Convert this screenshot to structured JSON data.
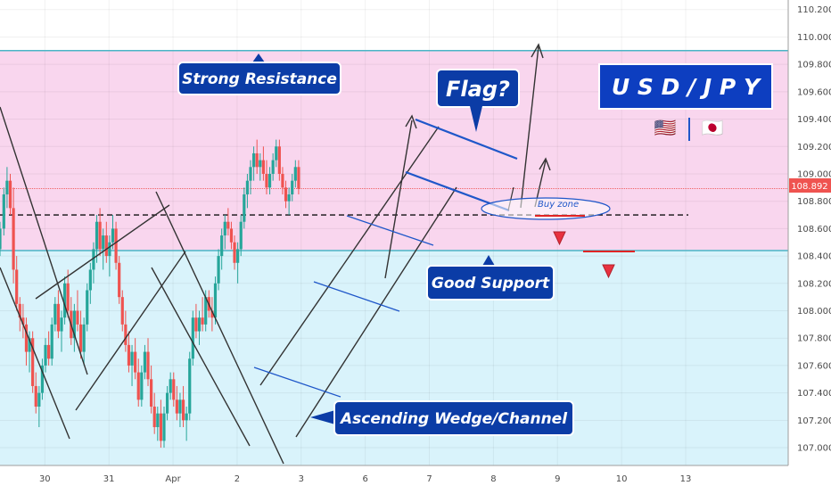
{
  "chart_data": {
    "type": "candlestick",
    "title": "U S D / J P Y",
    "symbol_flags": [
      "🇺🇸",
      "🇯🇵"
    ],
    "y_range": [
      106.87,
      110.27
    ],
    "y_ticks": [
      "110.200",
      "110.000",
      "109.800",
      "109.600",
      "109.400",
      "109.200",
      "109.000",
      "108.800",
      "108.600",
      "108.400",
      "108.200",
      "108.000",
      "107.800",
      "107.600",
      "107.400",
      "107.200",
      "107.000"
    ],
    "x_labels": [
      "30",
      "31",
      "Apr",
      "2",
      "3",
      "6",
      "7",
      "8",
      "9",
      "10",
      "13"
    ],
    "x_range": [
      -0.7,
      11.6
    ],
    "last_price": "108.892",
    "zones": {
      "resistance": {
        "from": 108.44,
        "to": 109.9,
        "color": "#f9d6ee"
      },
      "support_below": {
        "from": 106.87,
        "to": 108.44,
        "color": "#d9f3fb"
      },
      "resistance_line": 109.9,
      "support_line": 108.44
    },
    "buy_zone_level": 108.7,
    "target_levels": [
      108.66,
      108.41
    ],
    "annotations": {
      "strong_resistance": "Strong Resistance",
      "flag": "Flag?",
      "good_support": "Good Support",
      "ascending_wedge": "Ascending Wedge/Channel",
      "buy_zone": "Buy zone"
    },
    "colors": {
      "up": "#26a69a",
      "down": "#ef5350",
      "callout": "#0b3ca6",
      "callout_border": "#ffffff",
      "title_box": "#0d3ec0"
    },
    "candles": [
      [
        -0.7,
        108.45,
        108.65,
        108.4,
        108.6
      ],
      [
        -0.64,
        108.6,
        108.9,
        108.55,
        108.85
      ],
      [
        -0.59,
        108.85,
        109.05,
        108.75,
        108.95
      ],
      [
        -0.54,
        108.95,
        109.0,
        108.7,
        108.75
      ],
      [
        -0.49,
        108.75,
        108.9,
        108.2,
        108.3
      ],
      [
        -0.44,
        108.3,
        108.4,
        108.0,
        108.05
      ],
      [
        -0.39,
        108.05,
        108.1,
        107.85,
        107.95
      ],
      [
        -0.34,
        107.95,
        108.05,
        107.8,
        107.9
      ],
      [
        -0.29,
        107.9,
        107.95,
        107.6,
        107.7
      ],
      [
        -0.24,
        107.7,
        107.85,
        107.55,
        107.8
      ],
      [
        -0.19,
        107.8,
        107.85,
        107.4,
        107.45
      ],
      [
        -0.14,
        107.45,
        107.55,
        107.25,
        107.3
      ],
      [
        -0.09,
        107.3,
        107.45,
        107.15,
        107.4
      ],
      [
        -0.04,
        107.4,
        107.65,
        107.35,
        107.6
      ],
      [
        0.01,
        107.6,
        107.8,
        107.55,
        107.75
      ],
      [
        0.06,
        107.75,
        107.85,
        107.6,
        107.65
      ],
      [
        0.11,
        107.65,
        107.95,
        107.6,
        107.9
      ],
      [
        0.16,
        107.9,
        108.1,
        107.85,
        108.05
      ],
      [
        0.21,
        108.05,
        108.15,
        107.8,
        107.85
      ],
      [
        0.26,
        107.85,
        108.0,
        107.7,
        107.95
      ],
      [
        0.31,
        107.95,
        108.25,
        107.9,
        108.2
      ],
      [
        0.36,
        108.2,
        108.3,
        107.95,
        108.0
      ],
      [
        0.41,
        108.0,
        108.1,
        107.75,
        107.8
      ],
      [
        0.46,
        107.8,
        108.05,
        107.7,
        108.0
      ],
      [
        0.51,
        108.0,
        108.15,
        107.85,
        107.9
      ],
      [
        0.56,
        107.9,
        108.0,
        107.65,
        107.7
      ],
      [
        0.61,
        107.7,
        107.95,
        107.6,
        107.9
      ],
      [
        0.66,
        107.9,
        108.2,
        107.85,
        108.15
      ],
      [
        0.71,
        108.15,
        108.35,
        108.05,
        108.3
      ],
      [
        0.76,
        108.3,
        108.5,
        108.2,
        108.45
      ],
      [
        0.81,
        108.45,
        108.7,
        108.35,
        108.65
      ],
      [
        0.86,
        108.65,
        108.75,
        108.4,
        108.45
      ],
      [
        0.91,
        108.45,
        108.6,
        108.3,
        108.55
      ],
      [
        0.96,
        108.55,
        108.65,
        108.35,
        108.4
      ],
      [
        1.01,
        108.4,
        108.55,
        108.25,
        108.5
      ],
      [
        1.06,
        108.5,
        108.7,
        108.45,
        108.6
      ],
      [
        1.11,
        108.6,
        108.65,
        108.3,
        108.35
      ],
      [
        1.16,
        108.35,
        108.4,
        108.05,
        108.1
      ],
      [
        1.21,
        108.1,
        108.15,
        107.85,
        107.9
      ],
      [
        1.26,
        107.9,
        108.0,
        107.7,
        107.75
      ],
      [
        1.31,
        107.75,
        107.85,
        107.55,
        107.6
      ],
      [
        1.36,
        107.6,
        107.75,
        107.45,
        107.7
      ],
      [
        1.41,
        107.7,
        107.8,
        107.5,
        107.55
      ],
      [
        1.46,
        107.55,
        107.65,
        107.3,
        107.35
      ],
      [
        1.51,
        107.35,
        107.6,
        107.3,
        107.55
      ],
      [
        1.56,
        107.55,
        107.75,
        107.5,
        107.7
      ],
      [
        1.61,
        107.7,
        107.8,
        107.45,
        107.5
      ],
      [
        1.66,
        107.5,
        107.6,
        107.25,
        107.3
      ],
      [
        1.71,
        107.3,
        107.4,
        107.1,
        107.15
      ],
      [
        1.76,
        107.15,
        107.3,
        107.05,
        107.25
      ],
      [
        1.81,
        107.25,
        107.35,
        107.0,
        107.05
      ],
      [
        1.86,
        107.05,
        107.3,
        107.0,
        107.25
      ],
      [
        1.91,
        107.25,
        107.45,
        107.2,
        107.4
      ],
      [
        1.96,
        107.4,
        107.55,
        107.35,
        107.5
      ],
      [
        2.01,
        107.5,
        107.55,
        107.3,
        107.35
      ],
      [
        2.06,
        107.35,
        107.45,
        107.2,
        107.25
      ],
      [
        2.11,
        107.25,
        107.4,
        107.15,
        107.35
      ],
      [
        2.16,
        107.35,
        107.45,
        107.15,
        107.2
      ],
      [
        2.21,
        107.2,
        107.3,
        107.05,
        107.25
      ],
      [
        2.26,
        107.25,
        107.7,
        107.2,
        107.65
      ],
      [
        2.31,
        107.65,
        108.0,
        107.6,
        107.95
      ],
      [
        2.36,
        107.95,
        108.05,
        107.8,
        107.85
      ],
      [
        2.41,
        107.85,
        108.0,
        107.75,
        107.95
      ],
      [
        2.46,
        107.95,
        108.1,
        107.85,
        107.9
      ],
      [
        2.51,
        107.9,
        108.15,
        107.85,
        108.1
      ],
      [
        2.56,
        108.1,
        108.15,
        107.95,
        108.0
      ],
      [
        2.61,
        108.0,
        108.1,
        107.85,
        107.95
      ],
      [
        2.66,
        107.95,
        108.25,
        107.9,
        108.2
      ],
      [
        2.71,
        108.2,
        108.45,
        108.15,
        108.4
      ],
      [
        2.76,
        108.4,
        108.6,
        108.3,
        108.55
      ],
      [
        2.81,
        108.55,
        108.7,
        108.45,
        108.65
      ],
      [
        2.86,
        108.65,
        108.75,
        108.55,
        108.6
      ],
      [
        2.91,
        108.6,
        108.65,
        108.45,
        108.5
      ],
      [
        2.96,
        108.5,
        108.55,
        108.3,
        108.35
      ],
      [
        3.01,
        108.35,
        108.5,
        108.2,
        108.45
      ],
      [
        3.06,
        108.45,
        108.7,
        108.4,
        108.65
      ],
      [
        3.11,
        108.65,
        108.9,
        108.6,
        108.85
      ],
      [
        3.16,
        108.85,
        109.0,
        108.75,
        108.95
      ],
      [
        3.21,
        108.95,
        109.1,
        108.85,
        109.05
      ],
      [
        3.26,
        109.05,
        109.2,
        108.95,
        109.15
      ],
      [
        3.31,
        109.15,
        109.25,
        109.0,
        109.05
      ],
      [
        3.36,
        109.05,
        109.15,
        108.95,
        109.1
      ],
      [
        3.41,
        109.1,
        109.2,
        108.95,
        109.0
      ],
      [
        3.46,
        109.0,
        109.1,
        108.85,
        108.9
      ],
      [
        3.51,
        108.9,
        109.05,
        108.85,
        109.0
      ],
      [
        3.56,
        109.0,
        109.15,
        108.95,
        109.1
      ],
      [
        3.61,
        109.1,
        109.25,
        109.05,
        109.2
      ],
      [
        3.66,
        109.2,
        109.25,
        108.95,
        109.0
      ],
      [
        3.71,
        109.0,
        109.05,
        108.85,
        108.9
      ],
      [
        3.76,
        108.9,
        108.95,
        108.75,
        108.8
      ],
      [
        3.81,
        108.8,
        108.9,
        108.7,
        108.85
      ],
      [
        3.86,
        108.85,
        109.0,
        108.8,
        108.95
      ],
      [
        3.91,
        108.95,
        109.1,
        108.9,
        109.05
      ],
      [
        3.96,
        109.05,
        109.1,
        108.85,
        108.89
      ]
    ]
  }
}
